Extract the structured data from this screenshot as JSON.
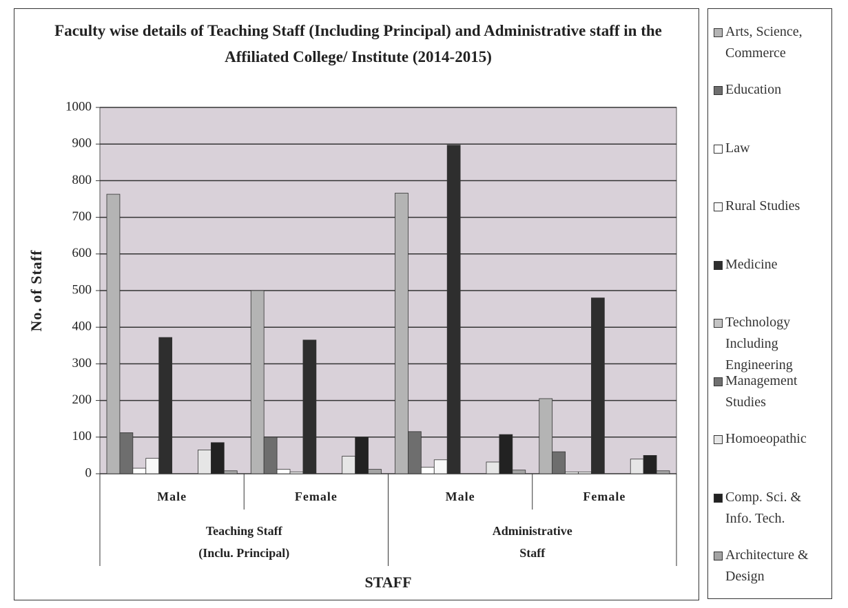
{
  "chart_data": {
    "type": "bar",
    "title": "Faculty wise details of Teaching Staff (Including Principal) and Administrative staff in the Affiliated College/ Institute (2014-2015)",
    "x_label": "STAFF",
    "y_label": "No. of Staff",
    "categories": [
      "Male",
      "Female",
      "Male",
      "Female"
    ],
    "groups": [
      [
        "Teaching Staff",
        "(Inclu. Principal)"
      ],
      [
        "Administrative",
        "Staff"
      ]
    ],
    "ylim": [
      0,
      1000
    ],
    "yticks": [
      0,
      100,
      200,
      300,
      400,
      500,
      600,
      700,
      800,
      900,
      1000
    ],
    "grid": true,
    "legend": "right",
    "series": [
      {
        "name": "Arts, Science, Commerce",
        "color": "#b4b4b4",
        "values": [
          763,
          500,
          766,
          205
        ]
      },
      {
        "name": "Education",
        "color": "#6e6e6e",
        "values": [
          112,
          100,
          115,
          60
        ]
      },
      {
        "name": "Law",
        "color": "#ffffff",
        "values": [
          15,
          12,
          18,
          5
        ]
      },
      {
        "name": "Rural Studies",
        "color": "#f8f8f8",
        "values": [
          42,
          5,
          38,
          5
        ]
      },
      {
        "name": "Medicine",
        "color": "#2e2e2e",
        "values": [
          372,
          365,
          897,
          480
        ]
      },
      {
        "name": "Technology Including Engineering",
        "color": "#c4c4c4",
        "values": [
          0,
          0,
          0,
          0
        ]
      },
      {
        "name": "Management Studies",
        "color": "#707070",
        "values": [
          0,
          0,
          0,
          0
        ]
      },
      {
        "name": "Homoeopathic",
        "color": "#e6e6e6",
        "values": [
          65,
          48,
          32,
          40
        ]
      },
      {
        "name": "Comp. Sci. & Info. Tech.",
        "color": "#222222",
        "values": [
          85,
          100,
          107,
          50
        ]
      },
      {
        "name": "Architecture & Design",
        "color": "#a4a4a4",
        "values": [
          8,
          12,
          10,
          8
        ]
      }
    ]
  }
}
